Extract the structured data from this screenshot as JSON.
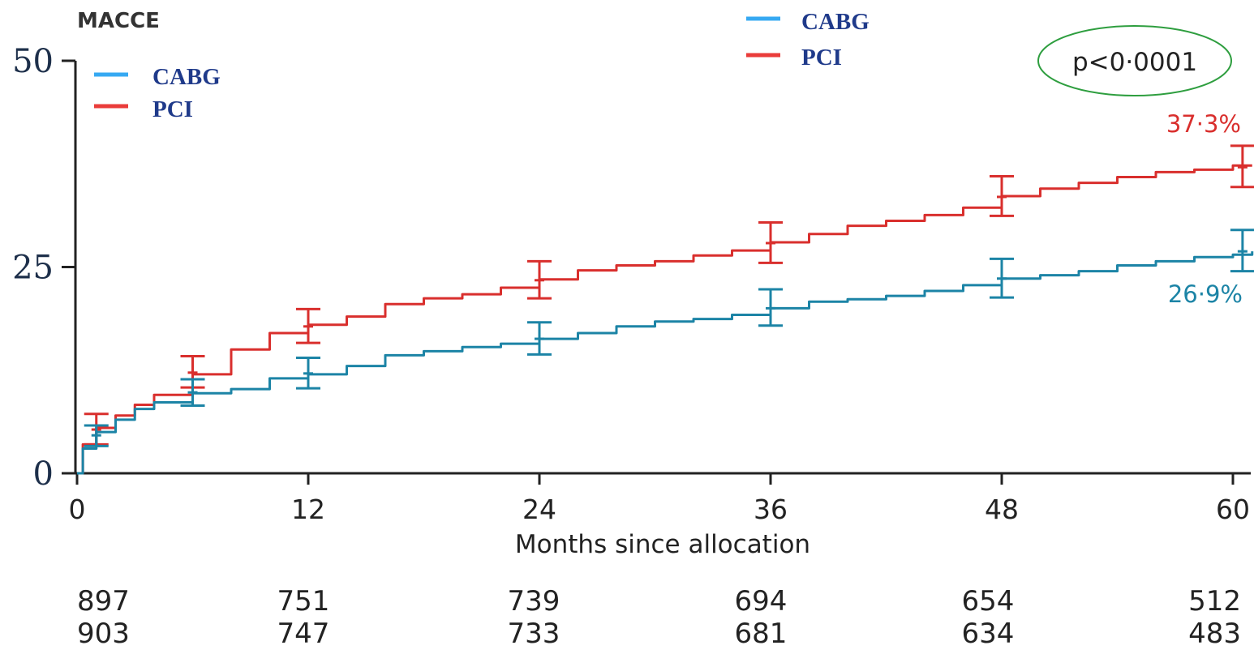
{
  "chart_data": {
    "type": "line",
    "title": "MACCE",
    "xlabel": "Months since allocation",
    "ylabel": "",
    "xlim": [
      0,
      61
    ],
    "ylim": [
      0,
      50
    ],
    "x_ticks": [
      0,
      12,
      24,
      36,
      48,
      60
    ],
    "y_ticks": [
      0,
      25,
      50
    ],
    "grid": false,
    "legends": [
      {
        "placement": "top-left",
        "entries": [
          {
            "name": "CABG",
            "color": "#36a9f2"
          },
          {
            "name": "PCI",
            "color": "#ea3c3a"
          }
        ]
      },
      {
        "placement": "top-center",
        "entries": [
          {
            "name": "CABG",
            "color": "#36a9f2"
          },
          {
            "name": "PCI",
            "color": "#ea3c3a"
          }
        ]
      }
    ],
    "p_value_label": "p<0·0001",
    "series": [
      {
        "name": "PCI",
        "color": "#d92f2d",
        "end_label": "37·3%",
        "x": [
          0,
          0.3,
          1,
          2,
          3,
          4,
          6,
          8,
          10,
          12,
          14,
          16,
          18,
          20,
          22,
          24,
          26,
          28,
          30,
          32,
          34,
          36,
          38,
          40,
          42,
          44,
          46,
          48,
          50,
          52,
          54,
          56,
          58,
          60,
          61
        ],
        "values": [
          0,
          3.5,
          5.5,
          7,
          8.3,
          9.5,
          12,
          15,
          17,
          18,
          19,
          20.5,
          21.2,
          21.7,
          22.5,
          23.5,
          24.6,
          25.2,
          25.7,
          26.4,
          27,
          28,
          29,
          30,
          30.6,
          31.3,
          32.2,
          33.6,
          34.5,
          35.2,
          35.9,
          36.5,
          36.8,
          37.3,
          37.3
        ],
        "error_bars": [
          {
            "x": 1,
            "y": 5.3,
            "low": 3.5,
            "high": 7.2
          },
          {
            "x": 6,
            "y": 12.2,
            "low": 10.4,
            "high": 14.2
          },
          {
            "x": 12,
            "y": 17.8,
            "low": 15.8,
            "high": 19.9
          },
          {
            "x": 24,
            "y": 23.4,
            "low": 21.2,
            "high": 25.7
          },
          {
            "x": 36,
            "y": 27.9,
            "low": 25.5,
            "high": 30.4
          },
          {
            "x": 48,
            "y": 33.5,
            "low": 31.2,
            "high": 36
          },
          {
            "x": 60.5,
            "y": 37.1,
            "low": 34.7,
            "high": 39.7
          }
        ]
      },
      {
        "name": "CABG",
        "color": "#1c84a6",
        "end_label": "26·9%",
        "x": [
          0,
          0.3,
          1,
          2,
          3,
          4,
          6,
          8,
          10,
          12,
          14,
          16,
          18,
          20,
          22,
          24,
          26,
          28,
          30,
          32,
          34,
          36,
          38,
          40,
          42,
          44,
          46,
          48,
          50,
          52,
          54,
          56,
          58,
          60,
          61
        ],
        "values": [
          0,
          3,
          5,
          6.5,
          7.8,
          8.6,
          9.7,
          10.2,
          11.5,
          12,
          13,
          14.3,
          14.8,
          15.3,
          15.7,
          16.3,
          17,
          17.8,
          18.4,
          18.7,
          19.2,
          20,
          20.8,
          21.1,
          21.5,
          22.1,
          22.8,
          23.6,
          24,
          24.5,
          25.2,
          25.7,
          26.2,
          26.5,
          26.9
        ],
        "error_bars": [
          {
            "x": 1,
            "y": 4.6,
            "low": 3.3,
            "high": 5.8
          },
          {
            "x": 6,
            "y": 9.8,
            "low": 8.2,
            "high": 11.4
          },
          {
            "x": 12,
            "y": 12.1,
            "low": 10.3,
            "high": 14
          },
          {
            "x": 24,
            "y": 16.3,
            "low": 14.4,
            "high": 18.3
          },
          {
            "x": 36,
            "y": 20,
            "low": 17.9,
            "high": 22.3
          },
          {
            "x": 48,
            "y": 23.6,
            "low": 21.3,
            "high": 26
          },
          {
            "x": 60.5,
            "y": 26.9,
            "low": 24.5,
            "high": 29.5
          }
        ]
      }
    ],
    "at_risk": {
      "x": [
        0,
        12,
        24,
        36,
        48,
        60
      ],
      "rows": [
        [
          897,
          751,
          739,
          694,
          654,
          512
        ],
        [
          903,
          747,
          733,
          681,
          634,
          483
        ]
      ]
    }
  }
}
